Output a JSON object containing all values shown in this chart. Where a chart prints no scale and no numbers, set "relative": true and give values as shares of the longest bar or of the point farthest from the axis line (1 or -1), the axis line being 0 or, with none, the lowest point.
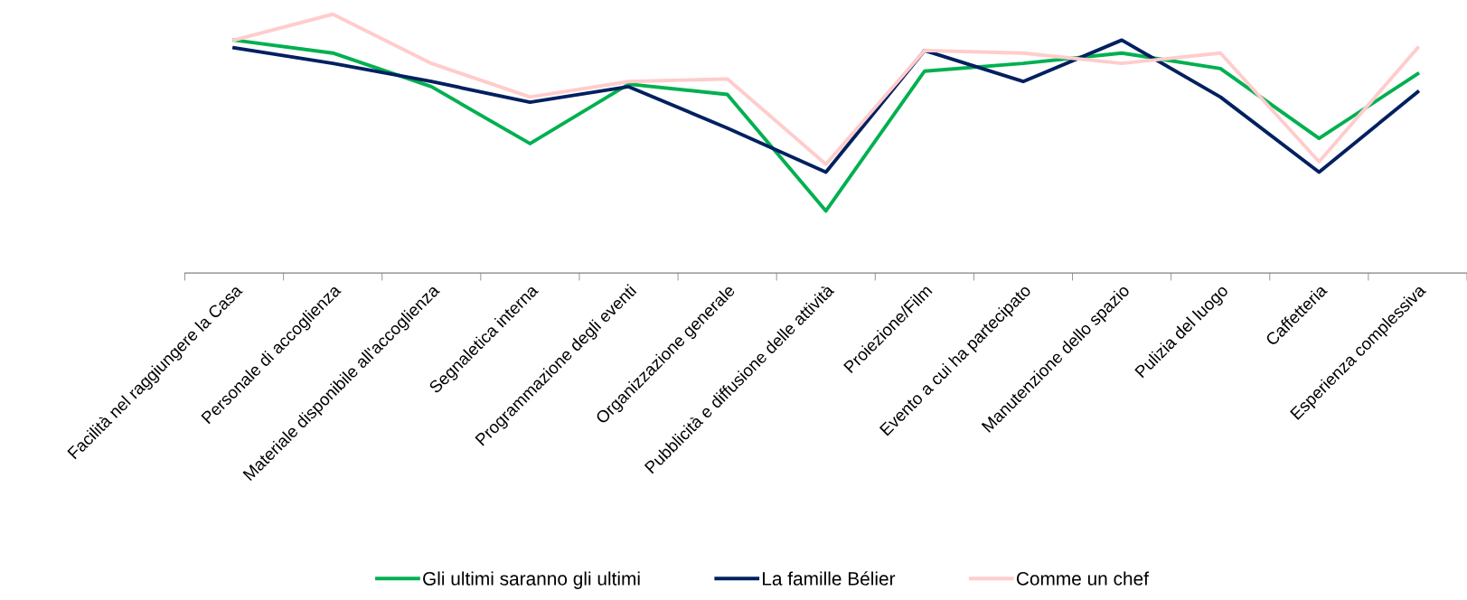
{
  "chart_data": {
    "type": "line",
    "relative": true,
    "categories": [
      "Facilità nel raggiungere la Casa",
      "Personale di accoglienza",
      "Materiale disponibile all'accoglienza",
      "Segnaletica interna",
      "Programmazione degli eventi",
      "Organizzazione generale",
      "Pubblicità e diffusione delle attività",
      "Proiezione/Film",
      "Evento a cui ha partecipato",
      "Manutenzione dello spazio",
      "Pulizia del luogo",
      "Caffetteria",
      "Esperienza complessiva"
    ],
    "series": [
      {
        "name": "Gli ultimi saranno gli ultimi",
        "color": "#00b050",
        "values": [
          0.9,
          0.85,
          0.72,
          0.5,
          0.73,
          0.69,
          0.24,
          0.78,
          0.81,
          0.85,
          0.79,
          0.52,
          0.77
        ]
      },
      {
        "name": "La famille Bélier",
        "color": "#002060",
        "values": [
          0.87,
          0.81,
          0.74,
          0.66,
          0.72,
          0.56,
          0.39,
          0.86,
          0.74,
          0.9,
          0.68,
          0.39,
          0.7
        ]
      },
      {
        "name": "Comme un chef",
        "color": "#ffcccc",
        "values": [
          0.9,
          1.0,
          0.81,
          0.68,
          0.74,
          0.75,
          0.42,
          0.86,
          0.85,
          0.81,
          0.85,
          0.43,
          0.87
        ]
      }
    ],
    "legend": "bottom",
    "grid": false,
    "marker": "none",
    "line_style": "solid"
  }
}
